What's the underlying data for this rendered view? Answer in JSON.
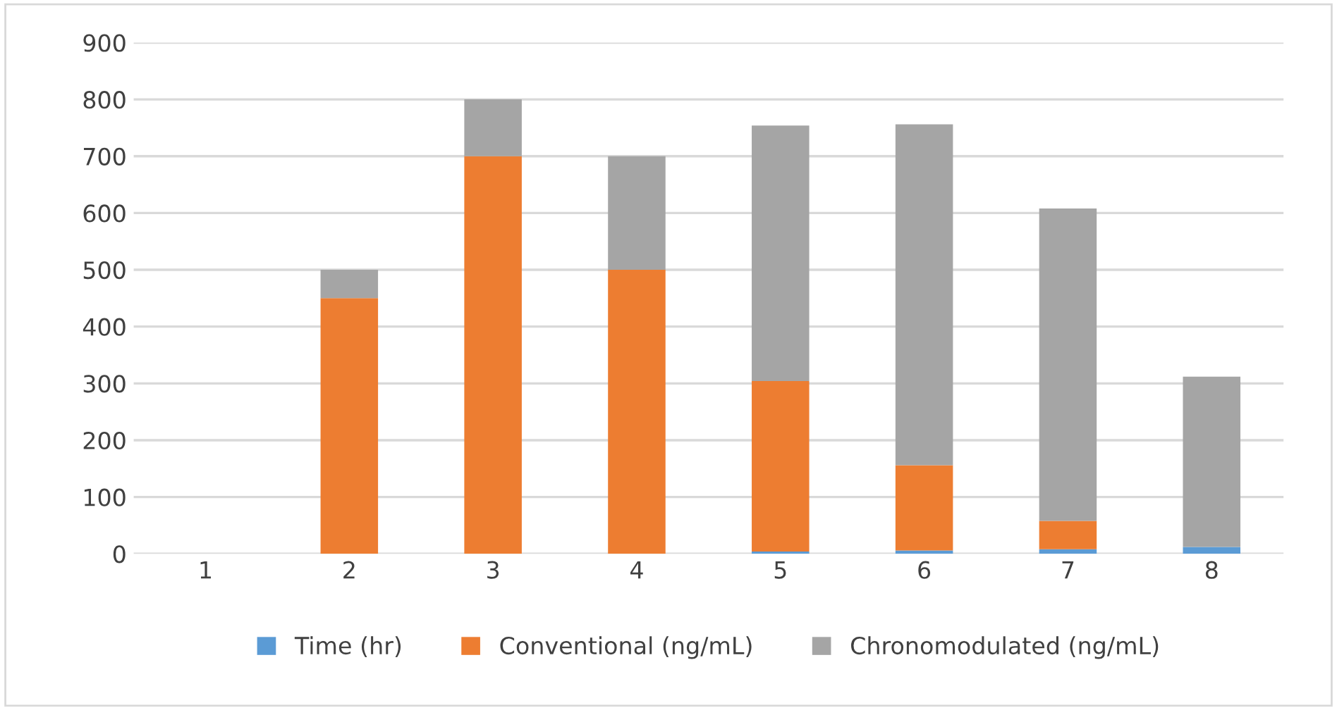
{
  "chart_data": {
    "type": "bar",
    "stacked": true,
    "categories": [
      "1",
      "2",
      "3",
      "4",
      "5",
      "6",
      "7",
      "8"
    ],
    "series": [
      {
        "name": "Time (hr)",
        "color": "#5b9bd5",
        "values": [
          0,
          null,
          null,
          null,
          4,
          6,
          8,
          12
        ]
      },
      {
        "name": "Conventional (ng/mL)",
        "color": "#ed7d31",
        "values": [
          0,
          450,
          700,
          500,
          300,
          150,
          50,
          0
        ]
      },
      {
        "name": "Chronomodulated (ng/mL)",
        "color": "#a5a5a5",
        "values": [
          0,
          50,
          100,
          200,
          450,
          600,
          550,
          300
        ]
      }
    ],
    "ylim": [
      0,
      900
    ],
    "yticks": [
      0,
      100,
      200,
      300,
      400,
      500,
      600,
      700,
      800,
      900
    ],
    "grid": "y",
    "legend": "bottom"
  }
}
